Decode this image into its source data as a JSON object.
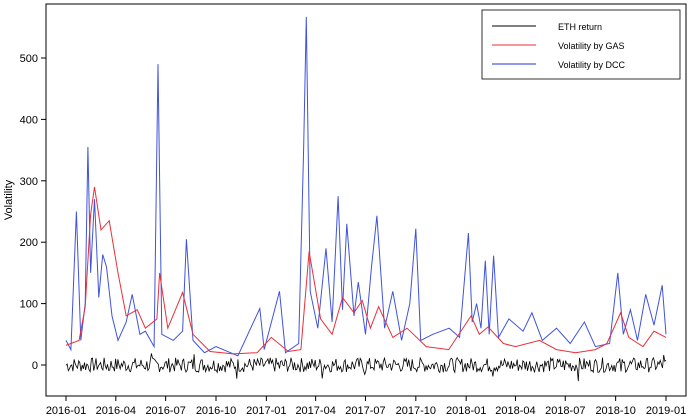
{
  "chart_data": {
    "type": "line",
    "title": "",
    "xlabel": "",
    "ylabel": "Volatility",
    "x_ticks": [
      "2016-01",
      "2016-04",
      "2016-07",
      "2016-10",
      "2017-01",
      "2017-04",
      "2017-07",
      "2017-10",
      "2018-01",
      "2018-04",
      "2018-07",
      "2018-10",
      "2019-01"
    ],
    "y_ticks": [
      0,
      100,
      200,
      300,
      400,
      500
    ],
    "xlim": [
      "2016-01-01",
      "2019-01-01"
    ],
    "ylim": [
      -60,
      580
    ],
    "grid": false,
    "legend_position": "top-right",
    "series": [
      {
        "name": "ETH return",
        "color": "#000000",
        "style": "noise",
        "points": [
          [
            "2016-01-01",
            0
          ],
          [
            "2019-01-01",
            0
          ]
        ],
        "approx_amplitude": 12
      },
      {
        "name": "Volatility by GAS",
        "color": "#e8303a",
        "points": [
          [
            "2016-01-01",
            32
          ],
          [
            "2016-01-25",
            40
          ],
          [
            "2016-02-05",
            95
          ],
          [
            "2016-02-15",
            245
          ],
          [
            "2016-02-22",
            290
          ],
          [
            "2016-03-05",
            220
          ],
          [
            "2016-03-20",
            235
          ],
          [
            "2016-04-05",
            150
          ],
          [
            "2016-04-20",
            80
          ],
          [
            "2016-05-10",
            90
          ],
          [
            "2016-05-25",
            60
          ],
          [
            "2016-06-15",
            75
          ],
          [
            "2016-06-20",
            150
          ],
          [
            "2016-07-05",
            60
          ],
          [
            "2016-08-01",
            118
          ],
          [
            "2016-08-20",
            50
          ],
          [
            "2016-09-20",
            22
          ],
          [
            "2016-11-01",
            18
          ],
          [
            "2016-12-15",
            20
          ],
          [
            "2017-01-10",
            45
          ],
          [
            "2017-02-10",
            22
          ],
          [
            "2017-03-05",
            25
          ],
          [
            "2017-03-20",
            185
          ],
          [
            "2017-04-10",
            75
          ],
          [
            "2017-05-01",
            50
          ],
          [
            "2017-05-20",
            110
          ],
          [
            "2017-06-10",
            85
          ],
          [
            "2017-06-25",
            105
          ],
          [
            "2017-07-10",
            60
          ],
          [
            "2017-07-25",
            95
          ],
          [
            "2017-08-20",
            45
          ],
          [
            "2017-09-15",
            60
          ],
          [
            "2017-10-20",
            30
          ],
          [
            "2017-11-30",
            25
          ],
          [
            "2018-01-10",
            80
          ],
          [
            "2018-01-25",
            50
          ],
          [
            "2018-02-10",
            62
          ],
          [
            "2018-03-10",
            35
          ],
          [
            "2018-04-01",
            30
          ],
          [
            "2018-05-15",
            40
          ],
          [
            "2018-06-15",
            25
          ],
          [
            "2018-07-20",
            20
          ],
          [
            "2018-08-25",
            25
          ],
          [
            "2018-09-15",
            35
          ],
          [
            "2018-10-10",
            85
          ],
          [
            "2018-10-25",
            45
          ],
          [
            "2018-11-20",
            30
          ],
          [
            "2018-12-10",
            55
          ],
          [
            "2019-01-01",
            45
          ]
        ]
      },
      {
        "name": "Volatility by DCC",
        "color": "#1f35d6",
        "points": [
          [
            "2016-01-01",
            40
          ],
          [
            "2016-01-10",
            25
          ],
          [
            "2016-01-20",
            250
          ],
          [
            "2016-01-28",
            40
          ],
          [
            "2016-02-05",
            100
          ],
          [
            "2016-02-10",
            355
          ],
          [
            "2016-02-15",
            150
          ],
          [
            "2016-02-22",
            270
          ],
          [
            "2016-03-01",
            110
          ],
          [
            "2016-03-08",
            180
          ],
          [
            "2016-03-15",
            160
          ],
          [
            "2016-03-25",
            80
          ],
          [
            "2016-04-05",
            40
          ],
          [
            "2016-04-20",
            70
          ],
          [
            "2016-05-01",
            115
          ],
          [
            "2016-05-15",
            50
          ],
          [
            "2016-05-25",
            55
          ],
          [
            "2016-06-10",
            30
          ],
          [
            "2016-06-17",
            490
          ],
          [
            "2016-06-24",
            50
          ],
          [
            "2016-07-15",
            40
          ],
          [
            "2016-08-01",
            55
          ],
          [
            "2016-08-08",
            205
          ],
          [
            "2016-08-20",
            40
          ],
          [
            "2016-09-10",
            20
          ],
          [
            "2016-10-01",
            30
          ],
          [
            "2016-11-10",
            15
          ],
          [
            "2016-12-20",
            92
          ],
          [
            "2016-12-28",
            25
          ],
          [
            "2017-01-25",
            120
          ],
          [
            "2017-02-05",
            20
          ],
          [
            "2017-03-01",
            35
          ],
          [
            "2017-03-10",
            350
          ],
          [
            "2017-03-15",
            567
          ],
          [
            "2017-03-22",
            120
          ],
          [
            "2017-04-05",
            60
          ],
          [
            "2017-04-20",
            190
          ],
          [
            "2017-05-01",
            70
          ],
          [
            "2017-05-12",
            275
          ],
          [
            "2017-05-20",
            90
          ],
          [
            "2017-05-28",
            230
          ],
          [
            "2017-06-10",
            80
          ],
          [
            "2017-06-18",
            135
          ],
          [
            "2017-07-01",
            50
          ],
          [
            "2017-07-12",
            160
          ],
          [
            "2017-07-22",
            243
          ],
          [
            "2017-08-05",
            60
          ],
          [
            "2017-08-20",
            120
          ],
          [
            "2017-09-05",
            40
          ],
          [
            "2017-09-20",
            100
          ],
          [
            "2017-10-01",
            222
          ],
          [
            "2017-10-10",
            40
          ],
          [
            "2017-11-01",
            50
          ],
          [
            "2017-12-01",
            60
          ],
          [
            "2017-12-20",
            45
          ],
          [
            "2018-01-05",
            215
          ],
          [
            "2018-01-12",
            70
          ],
          [
            "2018-01-20",
            100
          ],
          [
            "2018-01-28",
            60
          ],
          [
            "2018-02-05",
            170
          ],
          [
            "2018-02-12",
            50
          ],
          [
            "2018-02-20",
            178
          ],
          [
            "2018-03-01",
            45
          ],
          [
            "2018-03-20",
            75
          ],
          [
            "2018-04-15",
            55
          ],
          [
            "2018-05-01",
            85
          ],
          [
            "2018-05-20",
            40
          ],
          [
            "2018-06-15",
            60
          ],
          [
            "2018-07-10",
            35
          ],
          [
            "2018-08-05",
            70
          ],
          [
            "2018-08-25",
            30
          ],
          [
            "2018-09-20",
            35
          ],
          [
            "2018-10-05",
            150
          ],
          [
            "2018-10-15",
            50
          ],
          [
            "2018-10-28",
            90
          ],
          [
            "2018-11-10",
            40
          ],
          [
            "2018-11-25",
            115
          ],
          [
            "2018-12-10",
            65
          ],
          [
            "2018-12-25",
            130
          ],
          [
            "2019-01-01",
            50
          ]
        ]
      }
    ]
  }
}
